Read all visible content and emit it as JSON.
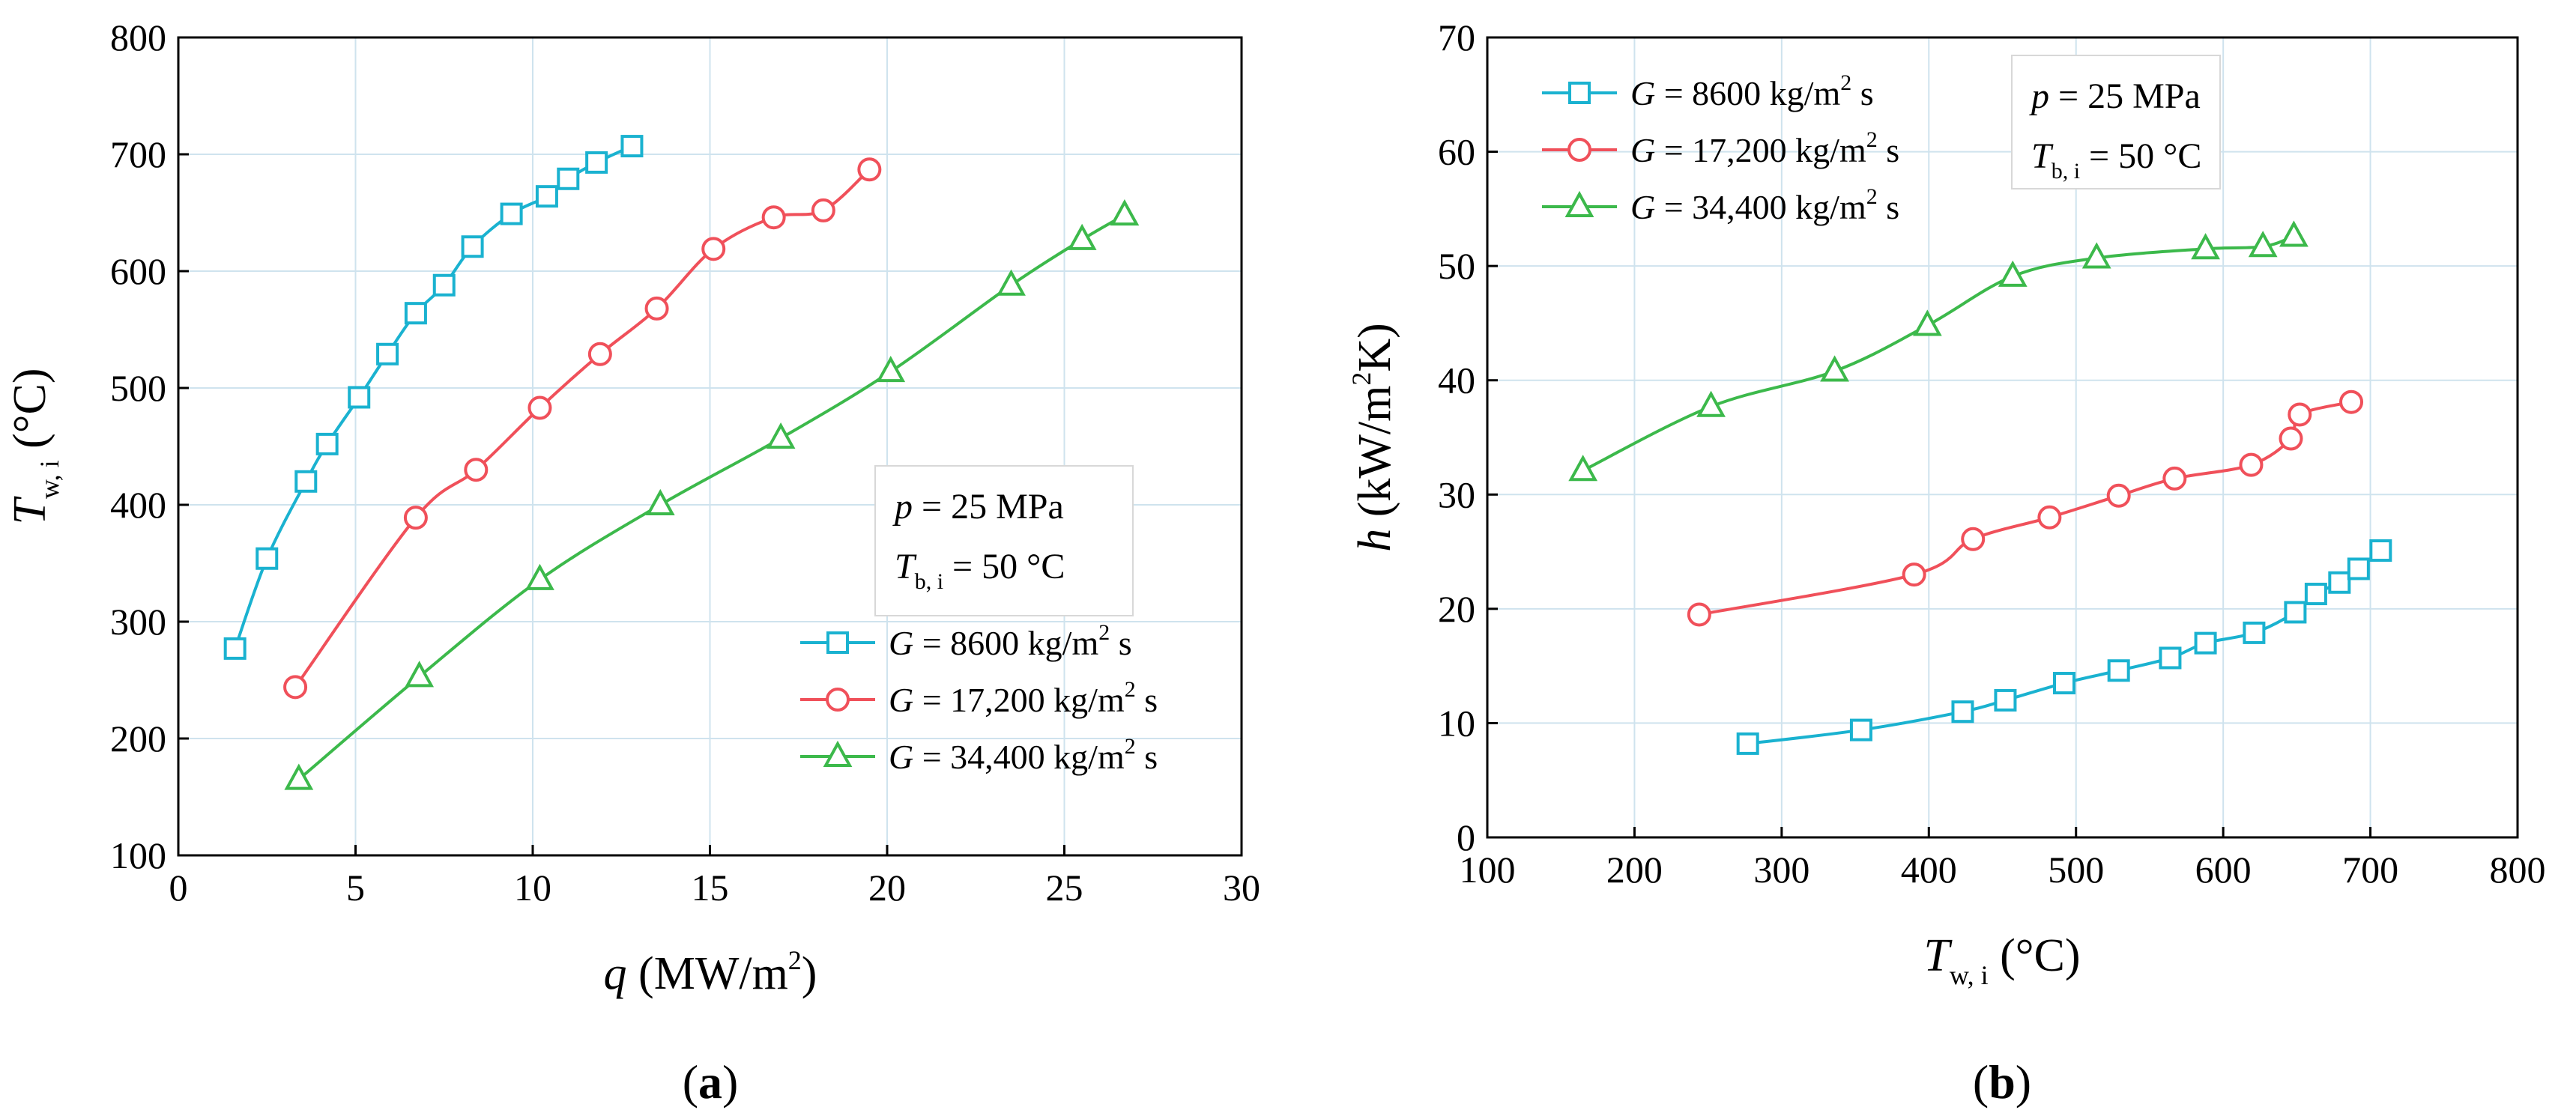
{
  "chart_data": [
    {
      "panel_label": "a",
      "type": "line",
      "xlabel_var": "q",
      "xlabel_unit": "(MW/m",
      "xlabel_unit_sup": "2",
      "xlabel_unit_end": ")",
      "ylabel_var": "T",
      "ylabel_sub": "w, i",
      "ylabel_unit": "(°C)",
      "xlim": [
        0,
        30
      ],
      "ylim": [
        100,
        800
      ],
      "xticks": [
        0,
        5,
        10,
        15,
        20,
        25,
        30
      ],
      "yticks": [
        100,
        200,
        300,
        400,
        500,
        600,
        700,
        800
      ],
      "grid": true,
      "annotation": {
        "line1_var": "p",
        "line1_text": " = 25 MPa",
        "line2_var": "T",
        "line2_sub": "b, i",
        "line2_text": " = 50 °C",
        "position": "right-middle"
      },
      "legend_position": "bottom-right",
      "series": [
        {
          "name_var": "G",
          "name_text": " = 8600 kg/m",
          "name_sup": "2",
          "name_end": " s",
          "color": "#1ab2d0",
          "marker": "square",
          "x": [
            1.6,
            2.5,
            3.6,
            4.2,
            5.1,
            5.9,
            6.7,
            7.5,
            8.3,
            9.4,
            10.4,
            11.0,
            11.8,
            12.8
          ],
          "y": [
            277,
            354,
            420,
            452,
            492,
            529,
            564,
            588,
            621,
            649,
            664,
            679,
            693,
            707
          ]
        },
        {
          "name_var": "G",
          "name_text": " = 17,200 kg/m",
          "name_sup": "2",
          "name_end": " s",
          "color": "#f0505a",
          "marker": "circle",
          "x": [
            3.3,
            6.7,
            8.4,
            10.2,
            11.9,
            13.5,
            15.1,
            16.8,
            18.2,
            19.5
          ],
          "y": [
            244,
            389,
            430,
            483,
            529,
            568,
            619,
            646,
            652,
            687
          ]
        },
        {
          "name_var": "G",
          "name_text": " = 34,400 kg/m",
          "name_sup": "2",
          "name_end": " s",
          "color": "#3cb94b",
          "marker": "triangle",
          "x": [
            3.4,
            6.8,
            10.2,
            13.6,
            17.0,
            20.1,
            23.5,
            25.5,
            26.7
          ],
          "y": [
            165,
            253,
            336,
            400,
            457,
            514,
            588,
            627,
            648
          ]
        }
      ]
    },
    {
      "panel_label": "b",
      "type": "line",
      "xlabel_var": "T",
      "xlabel_sub": "w, i",
      "xlabel_unit": "(°C)",
      "ylabel_var": "h",
      "ylabel_unit": "(kW/m",
      "ylabel_unit_sup": "2",
      "ylabel_unit_end": "K)",
      "xlim": [
        100,
        800
      ],
      "ylim": [
        0,
        70
      ],
      "xticks": [
        100,
        200,
        300,
        400,
        500,
        600,
        700,
        800
      ],
      "yticks": [
        0,
        10,
        20,
        30,
        40,
        50,
        60,
        70
      ],
      "grid": true,
      "annotation": {
        "line1_var": "p",
        "line1_text": " = 25 MPa",
        "line2_var": "T",
        "line2_sub": "b, i",
        "line2_text": " = 50 °C",
        "position": "top-middle"
      },
      "legend_position": "top-left",
      "series": [
        {
          "name_var": "G",
          "name_text": " = 8600 kg/m",
          "name_sup": "2",
          "name_end": " s",
          "color": "#1ab2d0",
          "marker": "square",
          "x": [
            277,
            354,
            423,
            452,
            492,
            529,
            564,
            588,
            621,
            649,
            663,
            679,
            692,
            707
          ],
          "y": [
            8.2,
            9.4,
            11.0,
            12.0,
            13.5,
            14.6,
            15.7,
            17.0,
            17.9,
            19.7,
            21.3,
            22.3,
            23.5,
            25.1
          ]
        },
        {
          "name_var": "G",
          "name_text": " = 17,200 kg/m",
          "name_sup": "2",
          "name_end": " s",
          "color": "#f0505a",
          "marker": "circle",
          "x": [
            244,
            390,
            430,
            482,
            529,
            567,
            619,
            646,
            652,
            687
          ],
          "y": [
            19.5,
            23.0,
            26.1,
            28.0,
            29.9,
            31.4,
            32.6,
            34.9,
            37.0,
            38.1
          ]
        },
        {
          "name_var": "G",
          "name_text": " = 34,400 kg/m",
          "name_sup": "2",
          "name_end": " s",
          "color": "#3cb94b",
          "marker": "triangle",
          "x": [
            165,
            252,
            336,
            399,
            457,
            514,
            588,
            627,
            648
          ],
          "y": [
            32.1,
            37.7,
            40.8,
            44.8,
            49.1,
            50.7,
            51.5,
            51.7,
            52.6
          ]
        }
      ]
    }
  ]
}
